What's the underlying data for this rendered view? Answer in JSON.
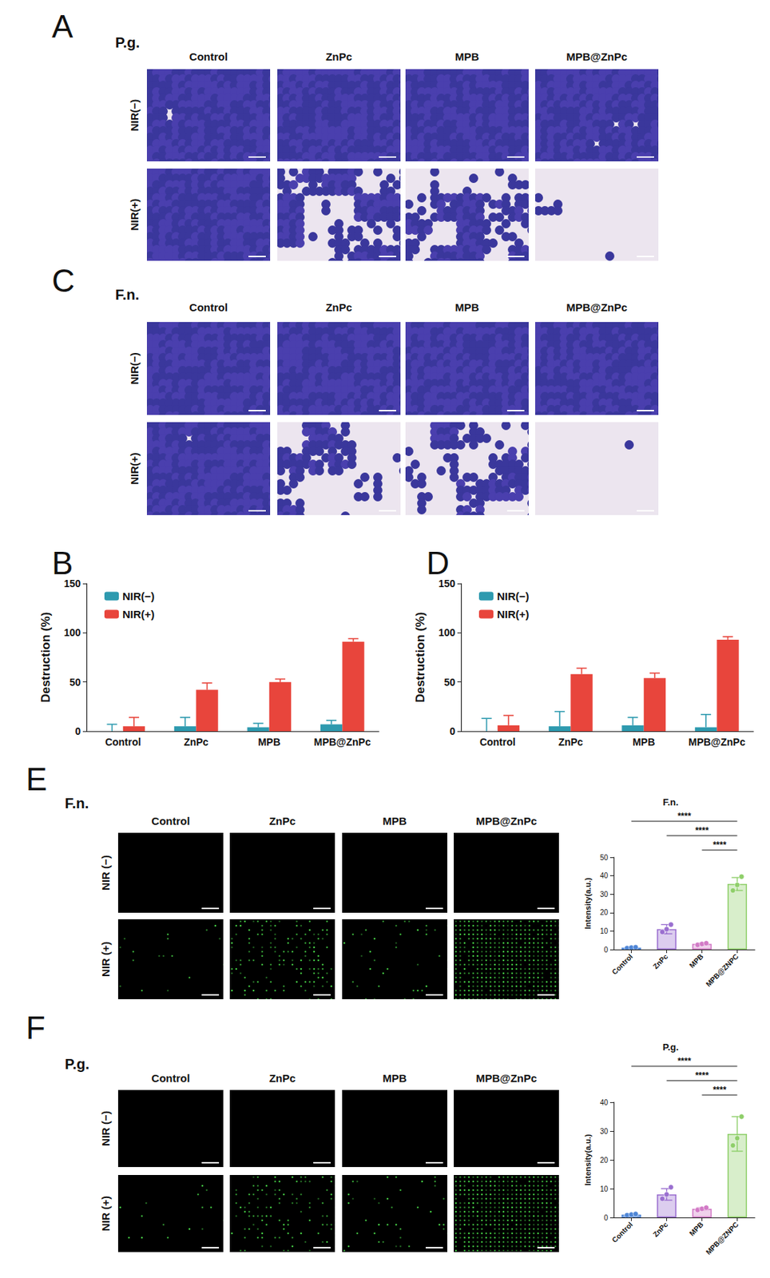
{
  "image_panels": [
    {
      "letter": "A",
      "title": "P.g.",
      "type": "brightfield",
      "columns": [
        "Control",
        "ZnPc",
        "MPB",
        "MPB@ZnPc"
      ],
      "rows": [
        "NIR(−)",
        "NIR(+)"
      ]
    },
    {
      "letter": "C",
      "title": "F.n.",
      "type": "brightfield",
      "columns": [
        "Control",
        "ZnPc",
        "MPB",
        "MPB@ZnPc"
      ],
      "rows": [
        "NIR(−)",
        "NIR(+)"
      ]
    },
    {
      "letter": "E",
      "title": "F.n.",
      "type": "fluorescence",
      "columns": [
        "Control",
        "ZnPc",
        "MPB",
        "MPB@ZnPc"
      ],
      "rows": [
        "NIR (−)",
        "NIR (+)"
      ]
    },
    {
      "letter": "F",
      "title": "P.g.",
      "type": "fluorescence",
      "columns": [
        "Control",
        "ZnPc",
        "MPB",
        "MPB@ZnPc"
      ],
      "rows": [
        "NIR (−)",
        "NIR (+)"
      ]
    }
  ],
  "chart_data": [
    {
      "panel": "B",
      "type": "bar",
      "y_label": "Destruction (%)",
      "categories": [
        "Control",
        "ZnPc",
        "MPB",
        "MPB@ZnPc"
      ],
      "ylim": [
        0,
        150
      ],
      "yticks": [
        0,
        50,
        100,
        150
      ],
      "grid": false,
      "legend": "upper left",
      "series": [
        {
          "name": "NIR(−)",
          "color": "#2e9aaf",
          "values": [
            0,
            5,
            4,
            7
          ],
          "errors": [
            7,
            9,
            4,
            4
          ]
        },
        {
          "name": "NIR(+)",
          "color": "#e8453c",
          "values": [
            5,
            42,
            50,
            91
          ],
          "errors": [
            9,
            7,
            3,
            3
          ]
        }
      ]
    },
    {
      "panel": "D",
      "type": "bar",
      "y_label": "Destruction (%)",
      "categories": [
        "Control",
        "ZnPc",
        "MPB",
        "MPB@ZnPc"
      ],
      "ylim": [
        0,
        150
      ],
      "yticks": [
        0,
        50,
        100,
        150
      ],
      "grid": false,
      "legend": "upper left",
      "series": [
        {
          "name": "NIR(−)",
          "color": "#2e9aaf",
          "values": [
            0,
            5,
            6,
            4
          ],
          "errors": [
            13,
            15,
            8,
            13
          ]
        },
        {
          "name": "NIR(+)",
          "color": "#e8453c",
          "values": [
            6,
            58,
            54,
            93
          ],
          "errors": [
            10,
            6,
            5,
            3
          ]
        }
      ]
    },
    {
      "type": "bar",
      "title": "F.n.",
      "y_label": "Intensity(a.u.)",
      "categories": [
        "Control",
        "ZnPc",
        "MPB",
        "MPB@ZNPC"
      ],
      "ylim": [
        0,
        50
      ],
      "yticks": [
        0,
        10,
        20,
        30,
        40,
        50
      ],
      "grid": false,
      "colors": [
        "#4f86d6",
        "#9a6fd0",
        "#d27ac6",
        "#8fcf6a"
      ],
      "values": [
        1,
        11,
        3,
        35.5
      ],
      "errors": [
        0.3,
        2.5,
        0.5,
        3.5
      ],
      "points": [
        [
          0.7,
          1.0,
          1.2
        ],
        [
          9.5,
          11,
          13.5
        ],
        [
          2.5,
          3,
          3.4
        ],
        [
          32,
          35,
          39.5
        ]
      ],
      "comparisons": [
        {
          "from": "Control",
          "to": "MPB@ZNPC",
          "label": "****"
        },
        {
          "from": "ZnPc",
          "to": "MPB@ZNPC",
          "label": "****"
        },
        {
          "from": "MPB",
          "to": "MPB@ZNPC",
          "label": "****"
        }
      ]
    },
    {
      "type": "bar",
      "title": "P.g.",
      "y_label": "Intensity(a.u.)",
      "categories": [
        "Control",
        "ZnPc",
        "MPB",
        "MPB@ZNPC"
      ],
      "ylim": [
        0,
        40
      ],
      "yticks": [
        0,
        10,
        20,
        30,
        40
      ],
      "grid": false,
      "colors": [
        "#4f86d6",
        "#9a6fd0",
        "#d27ac6",
        "#8fcf6a"
      ],
      "values": [
        1,
        8,
        3,
        29
      ],
      "errors": [
        0.3,
        2,
        0.4,
        6
      ],
      "points": [
        [
          0.8,
          1.0,
          1.2
        ],
        [
          6.5,
          8,
          10.5
        ],
        [
          2.6,
          3,
          3.4
        ],
        [
          25,
          27.5,
          35
        ]
      ],
      "comparisons": [
        {
          "from": "Control",
          "to": "MPB@ZNPC",
          "label": "****"
        },
        {
          "from": "ZnPc",
          "to": "MPB@ZNPC",
          "label": "****"
        },
        {
          "from": "MPB",
          "to": "MPB@ZNPC",
          "label": "****"
        }
      ]
    }
  ]
}
